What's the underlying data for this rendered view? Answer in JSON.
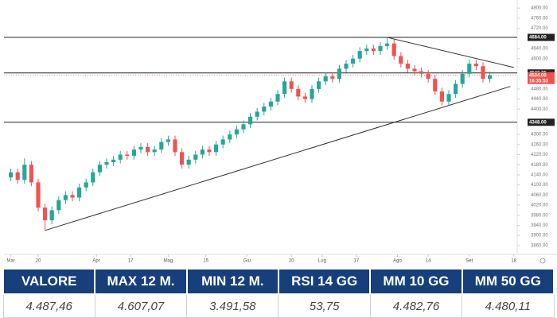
{
  "chart_data": {
    "type": "candlestick",
    "x": [
      0,
      1,
      2,
      3,
      4,
      5,
      6,
      7,
      8,
      9,
      10,
      11,
      12,
      13,
      14,
      15,
      16,
      17,
      18,
      19,
      20,
      21,
      22,
      23,
      24,
      25,
      26,
      27,
      28,
      29,
      30,
      31,
      32,
      33,
      34,
      35,
      36,
      37,
      38,
      39,
      40,
      41,
      42,
      43,
      44,
      45,
      46,
      47,
      48,
      49,
      50,
      51,
      52,
      53,
      54,
      55,
      56,
      57,
      58,
      59,
      60,
      61,
      62,
      63,
      64,
      65,
      66,
      67,
      68,
      69,
      70
    ],
    "open": [
      4130,
      4150,
      4120,
      4180,
      4110,
      4010,
      3960,
      4000,
      4040,
      4060,
      4050,
      4090,
      4110,
      4150,
      4180,
      4190,
      4200,
      4220,
      4215,
      4240,
      4250,
      4230,
      4240,
      4270,
      4280,
      4230,
      4180,
      4200,
      4220,
      4240,
      4230,
      4260,
      4280,
      4300,
      4320,
      4340,
      4370,
      4390,
      4410,
      4430,
      4460,
      4510,
      4480,
      4450,
      4440,
      4480,
      4510,
      4530,
      4520,
      4560,
      4580,
      4600,
      4630,
      4640,
      4630,
      4650,
      4660,
      4610,
      4580,
      4560,
      4550,
      4540,
      4520,
      4470,
      4430,
      4460,
      4500,
      4540,
      4580,
      4570,
      4520
    ],
    "high": [
      4165,
      4165,
      4205,
      4195,
      4125,
      4025,
      4015,
      4055,
      4075,
      4075,
      4105,
      4125,
      4165,
      4195,
      4205,
      4215,
      4235,
      4235,
      4255,
      4265,
      4265,
      4255,
      4285,
      4295,
      4295,
      4245,
      4215,
      4235,
      4255,
      4255,
      4275,
      4295,
      4315,
      4335,
      4355,
      4385,
      4405,
      4425,
      4445,
      4475,
      4525,
      4525,
      4495,
      4465,
      4495,
      4525,
      4545,
      4545,
      4575,
      4595,
      4615,
      4645,
      4655,
      4655,
      4665,
      4684,
      4675,
      4625,
      4595,
      4575,
      4565,
      4555,
      4535,
      4485,
      4475,
      4515,
      4555,
      4595,
      4595,
      4585,
      4549
    ],
    "low": [
      4115,
      4105,
      4105,
      4095,
      3995,
      3920,
      3945,
      3985,
      4025,
      4035,
      4035,
      4075,
      4095,
      4135,
      4165,
      4175,
      4185,
      4200,
      4200,
      4225,
      4215,
      4215,
      4225,
      4255,
      4215,
      4165,
      4165,
      4185,
      4205,
      4215,
      4215,
      4245,
      4265,
      4285,
      4305,
      4325,
      4355,
      4375,
      4395,
      4415,
      4445,
      4465,
      4435,
      4425,
      4425,
      4465,
      4495,
      4505,
      4505,
      4545,
      4565,
      4585,
      4615,
      4615,
      4615,
      4635,
      4595,
      4565,
      4545,
      4535,
      4525,
      4505,
      4455,
      4415,
      4415,
      4445,
      4485,
      4525,
      4555,
      4505,
      4505
    ],
    "close": [
      4150,
      4120,
      4180,
      4110,
      4010,
      3960,
      4000,
      4040,
      4060,
      4050,
      4090,
      4110,
      4150,
      4180,
      4190,
      4200,
      4220,
      4215,
      4240,
      4250,
      4230,
      4240,
      4270,
      4280,
      4230,
      4180,
      4200,
      4220,
      4240,
      4230,
      4260,
      4280,
      4300,
      4320,
      4340,
      4370,
      4390,
      4410,
      4430,
      4460,
      4510,
      4480,
      4450,
      4440,
      4480,
      4510,
      4530,
      4520,
      4560,
      4580,
      4600,
      4630,
      4640,
      4630,
      4650,
      4660,
      4610,
      4580,
      4560,
      4550,
      4540,
      4520,
      4470,
      4430,
      4460,
      4500,
      4540,
      4580,
      4570,
      4520,
      4534
    ],
    "up_color": "#26a69a",
    "down_color": "#ef5350",
    "xlim": [
      -1,
      74
    ],
    "xticks": [
      {
        "value": 0,
        "label": "Mar"
      },
      {
        "value": 4,
        "label": "20"
      },
      {
        "value": 12.5,
        "label": "Apr"
      },
      {
        "value": 17.5,
        "label": "17"
      },
      {
        "value": 23,
        "label": "Mag"
      },
      {
        "value": 28.5,
        "label": "15"
      },
      {
        "value": 34.5,
        "label": "Giu"
      },
      {
        "value": 41,
        "label": "20"
      },
      {
        "value": 45.5,
        "label": "Lug"
      },
      {
        "value": 50.5,
        "label": "17"
      },
      {
        "value": 56.5,
        "label": "Ago"
      },
      {
        "value": 61,
        "label": "14"
      },
      {
        "value": 67,
        "label": "Set"
      },
      {
        "value": 73.5,
        "label": "18"
      }
    ],
    "ylim": [
      3825,
      4832
    ],
    "yticks": [
      {
        "value": 4800,
        "label": "4800.00"
      },
      {
        "value": 4760,
        "label": "4760.00"
      },
      {
        "value": 4720,
        "label": "4720.00"
      },
      {
        "value": 4640,
        "label": "4640.00"
      },
      {
        "value": 4600,
        "label": "4600.00"
      },
      {
        "value": 4480,
        "label": "4480.00"
      },
      {
        "value": 4440,
        "label": "4440.00"
      },
      {
        "value": 4400,
        "label": "4400.00"
      },
      {
        "value": 4300,
        "label": "4300.00"
      },
      {
        "value": 4260,
        "label": "4260.00"
      },
      {
        "value": 4220,
        "label": "4220.00"
      },
      {
        "value": 4180,
        "label": "4180.00"
      },
      {
        "value": 4140,
        "label": "4140.00"
      },
      {
        "value": 4100,
        "label": "4100.00"
      },
      {
        "value": 4060,
        "label": "4060.00"
      },
      {
        "value": 4020,
        "label": "4020.00"
      },
      {
        "value": 3980,
        "label": "3980.00"
      },
      {
        "value": 3940,
        "label": "3940.00"
      },
      {
        "value": 3900,
        "label": "3900.00"
      },
      {
        "value": 3860,
        "label": "3860.00"
      }
    ],
    "levels": [
      {
        "value": 4684,
        "label": "4684.00"
      },
      {
        "value": 4543.25,
        "label": "4543.25"
      },
      {
        "value": 4348,
        "label": "4348.00"
      }
    ],
    "last_price": {
      "value": 4534,
      "label": "4534.00"
    },
    "countdown": "16:35:53",
    "trendlines": [
      {
        "x": [
          5,
          73
        ],
        "y": [
          3920,
          4490
        ]
      },
      {
        "x": [
          55,
          73.5
        ],
        "y": [
          4684,
          4565
        ]
      }
    ]
  },
  "table": {
    "headers": [
      "VALORE",
      "MAX 12 M.",
      "MIN 12 M.",
      "RSI 14 GG",
      "MM 10 GG",
      "MM 50 GG"
    ],
    "values": [
      "4.487,46",
      "4.607,07",
      "3.491,58",
      "53,75",
      "4.482,76",
      "4.480,11"
    ]
  }
}
